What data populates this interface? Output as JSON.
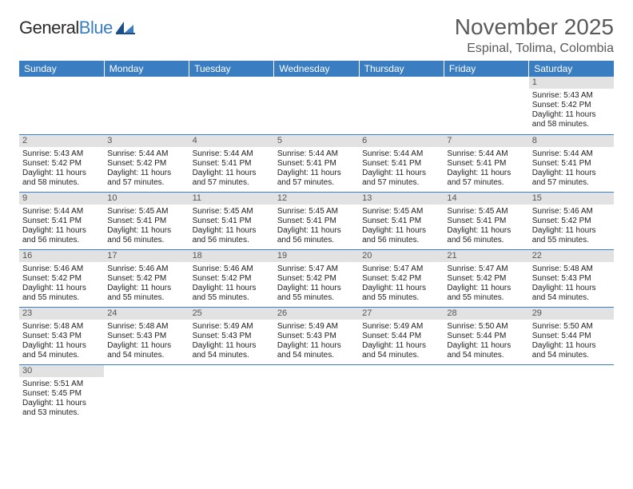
{
  "logo": {
    "part1": "General",
    "part2": "Blue"
  },
  "title": "November 2025",
  "location": "Espinal, Tolima, Colombia",
  "weekdays": [
    "Sunday",
    "Monday",
    "Tuesday",
    "Wednesday",
    "Thursday",
    "Friday",
    "Saturday"
  ],
  "colors": {
    "header_bg": "#3a7ec1",
    "header_fg": "#ffffff",
    "daynum_bg": "#e2e2e2",
    "border": "#3a7ec1"
  },
  "weeks": [
    [
      null,
      null,
      null,
      null,
      null,
      null,
      {
        "num": "1",
        "sunrise": "Sunrise: 5:43 AM",
        "sunset": "Sunset: 5:42 PM",
        "daylight": "Daylight: 11 hours and 58 minutes."
      }
    ],
    [
      {
        "num": "2",
        "sunrise": "Sunrise: 5:43 AM",
        "sunset": "Sunset: 5:42 PM",
        "daylight": "Daylight: 11 hours and 58 minutes."
      },
      {
        "num": "3",
        "sunrise": "Sunrise: 5:44 AM",
        "sunset": "Sunset: 5:42 PM",
        "daylight": "Daylight: 11 hours and 57 minutes."
      },
      {
        "num": "4",
        "sunrise": "Sunrise: 5:44 AM",
        "sunset": "Sunset: 5:41 PM",
        "daylight": "Daylight: 11 hours and 57 minutes."
      },
      {
        "num": "5",
        "sunrise": "Sunrise: 5:44 AM",
        "sunset": "Sunset: 5:41 PM",
        "daylight": "Daylight: 11 hours and 57 minutes."
      },
      {
        "num": "6",
        "sunrise": "Sunrise: 5:44 AM",
        "sunset": "Sunset: 5:41 PM",
        "daylight": "Daylight: 11 hours and 57 minutes."
      },
      {
        "num": "7",
        "sunrise": "Sunrise: 5:44 AM",
        "sunset": "Sunset: 5:41 PM",
        "daylight": "Daylight: 11 hours and 57 minutes."
      },
      {
        "num": "8",
        "sunrise": "Sunrise: 5:44 AM",
        "sunset": "Sunset: 5:41 PM",
        "daylight": "Daylight: 11 hours and 57 minutes."
      }
    ],
    [
      {
        "num": "9",
        "sunrise": "Sunrise: 5:44 AM",
        "sunset": "Sunset: 5:41 PM",
        "daylight": "Daylight: 11 hours and 56 minutes."
      },
      {
        "num": "10",
        "sunrise": "Sunrise: 5:45 AM",
        "sunset": "Sunset: 5:41 PM",
        "daylight": "Daylight: 11 hours and 56 minutes."
      },
      {
        "num": "11",
        "sunrise": "Sunrise: 5:45 AM",
        "sunset": "Sunset: 5:41 PM",
        "daylight": "Daylight: 11 hours and 56 minutes."
      },
      {
        "num": "12",
        "sunrise": "Sunrise: 5:45 AM",
        "sunset": "Sunset: 5:41 PM",
        "daylight": "Daylight: 11 hours and 56 minutes."
      },
      {
        "num": "13",
        "sunrise": "Sunrise: 5:45 AM",
        "sunset": "Sunset: 5:41 PM",
        "daylight": "Daylight: 11 hours and 56 minutes."
      },
      {
        "num": "14",
        "sunrise": "Sunrise: 5:45 AM",
        "sunset": "Sunset: 5:41 PM",
        "daylight": "Daylight: 11 hours and 56 minutes."
      },
      {
        "num": "15",
        "sunrise": "Sunrise: 5:46 AM",
        "sunset": "Sunset: 5:42 PM",
        "daylight": "Daylight: 11 hours and 55 minutes."
      }
    ],
    [
      {
        "num": "16",
        "sunrise": "Sunrise: 5:46 AM",
        "sunset": "Sunset: 5:42 PM",
        "daylight": "Daylight: 11 hours and 55 minutes."
      },
      {
        "num": "17",
        "sunrise": "Sunrise: 5:46 AM",
        "sunset": "Sunset: 5:42 PM",
        "daylight": "Daylight: 11 hours and 55 minutes."
      },
      {
        "num": "18",
        "sunrise": "Sunrise: 5:46 AM",
        "sunset": "Sunset: 5:42 PM",
        "daylight": "Daylight: 11 hours and 55 minutes."
      },
      {
        "num": "19",
        "sunrise": "Sunrise: 5:47 AM",
        "sunset": "Sunset: 5:42 PM",
        "daylight": "Daylight: 11 hours and 55 minutes."
      },
      {
        "num": "20",
        "sunrise": "Sunrise: 5:47 AM",
        "sunset": "Sunset: 5:42 PM",
        "daylight": "Daylight: 11 hours and 55 minutes."
      },
      {
        "num": "21",
        "sunrise": "Sunrise: 5:47 AM",
        "sunset": "Sunset: 5:42 PM",
        "daylight": "Daylight: 11 hours and 55 minutes."
      },
      {
        "num": "22",
        "sunrise": "Sunrise: 5:48 AM",
        "sunset": "Sunset: 5:43 PM",
        "daylight": "Daylight: 11 hours and 54 minutes."
      }
    ],
    [
      {
        "num": "23",
        "sunrise": "Sunrise: 5:48 AM",
        "sunset": "Sunset: 5:43 PM",
        "daylight": "Daylight: 11 hours and 54 minutes."
      },
      {
        "num": "24",
        "sunrise": "Sunrise: 5:48 AM",
        "sunset": "Sunset: 5:43 PM",
        "daylight": "Daylight: 11 hours and 54 minutes."
      },
      {
        "num": "25",
        "sunrise": "Sunrise: 5:49 AM",
        "sunset": "Sunset: 5:43 PM",
        "daylight": "Daylight: 11 hours and 54 minutes."
      },
      {
        "num": "26",
        "sunrise": "Sunrise: 5:49 AM",
        "sunset": "Sunset: 5:43 PM",
        "daylight": "Daylight: 11 hours and 54 minutes."
      },
      {
        "num": "27",
        "sunrise": "Sunrise: 5:49 AM",
        "sunset": "Sunset: 5:44 PM",
        "daylight": "Daylight: 11 hours and 54 minutes."
      },
      {
        "num": "28",
        "sunrise": "Sunrise: 5:50 AM",
        "sunset": "Sunset: 5:44 PM",
        "daylight": "Daylight: 11 hours and 54 minutes."
      },
      {
        "num": "29",
        "sunrise": "Sunrise: 5:50 AM",
        "sunset": "Sunset: 5:44 PM",
        "daylight": "Daylight: 11 hours and 54 minutes."
      }
    ],
    [
      {
        "num": "30",
        "sunrise": "Sunrise: 5:51 AM",
        "sunset": "Sunset: 5:45 PM",
        "daylight": "Daylight: 11 hours and 53 minutes."
      },
      null,
      null,
      null,
      null,
      null,
      null
    ]
  ]
}
